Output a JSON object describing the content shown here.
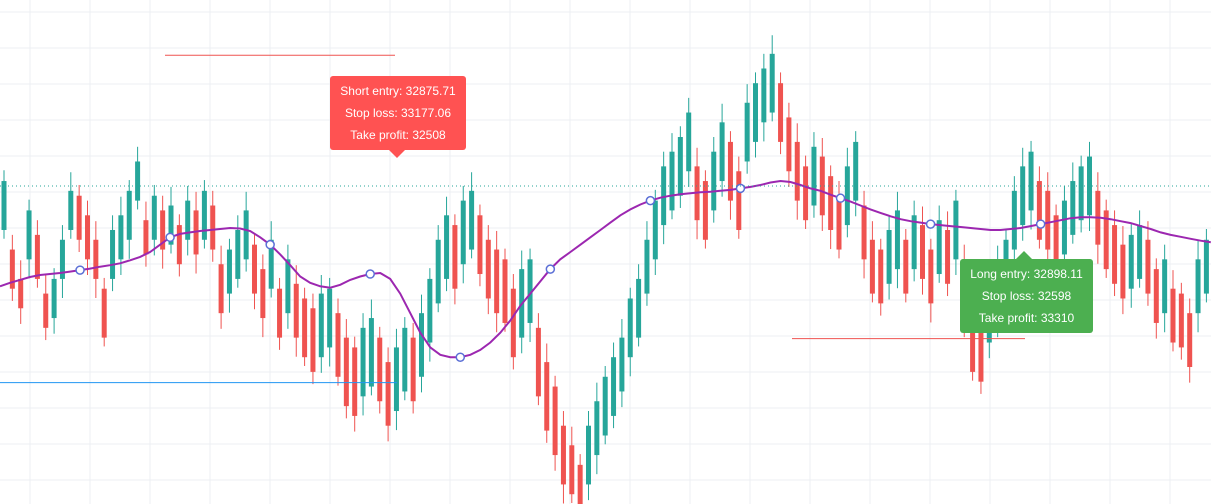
{
  "chart_data": {
    "type": "candlestick",
    "ylim": [
      32260,
      33290
    ],
    "grid": true,
    "colors": {
      "up": "#26a69a",
      "down": "#ef5350",
      "ma": "#9c27b0",
      "marker": "#5b6fd6",
      "last_price": "#26a69a",
      "support": "#2196f3",
      "resistance": "#26a0c8",
      "short_stop": "#ef5350",
      "long_stop": "#ef5350",
      "grid": "#eceff3",
      "short_box": "#ff5252",
      "long_box": "#4caf50"
    },
    "last_price": 32910,
    "candles_top": [
      32920,
      32780,
      32720,
      32860,
      32810,
      32690,
      32720,
      32800,
      32900,
      32890,
      32850,
      32800,
      32700,
      32820,
      32850,
      32900,
      32960,
      32840,
      32890,
      32860,
      32870,
      32830,
      32880,
      32860,
      32900,
      32870,
      32750,
      32780,
      32820,
      32860,
      32790,
      32740,
      32800,
      32700,
      32760,
      32710,
      32680,
      32660,
      32690,
      32700,
      32650,
      32600,
      32580,
      32620,
      32640,
      32600,
      32550,
      32580,
      32620,
      32600,
      32650,
      32720,
      32800,
      32850,
      32830,
      32880,
      32900,
      32850,
      32800,
      32780,
      32760,
      32700,
      32740,
      32760,
      32620,
      32550,
      32500,
      32420,
      32380,
      32340,
      32420,
      32470,
      32520,
      32560,
      32600,
      32680,
      32720,
      32800,
      32880,
      32950,
      32980,
      33010,
      33060,
      32950,
      32920,
      32980,
      33040,
      33000,
      32940,
      33080,
      33120,
      33150,
      33180,
      33120,
      33050,
      33000,
      32950,
      32990,
      32970,
      32930,
      32890,
      32950,
      33000,
      32870,
      32800,
      32780,
      32820,
      32860,
      32800,
      32850,
      32830,
      32780,
      32840,
      32820,
      32880,
      32760,
      32650,
      32620,
      32700,
      32750,
      32800,
      32900,
      32950,
      32980,
      32920,
      32900,
      32850,
      32880,
      32920,
      32950,
      32970,
      32900,
      32860,
      32830,
      32790,
      32810,
      32830,
      32800,
      32740,
      32760,
      32700,
      32690,
      32650,
      32760,
      32800,
      32920
    ],
    "candles_bottom": [
      32820,
      32700,
      32660,
      32760,
      32720,
      32620,
      32640,
      32720,
      32820,
      32800,
      32760,
      32720,
      32600,
      32720,
      32760,
      32800,
      32880,
      32770,
      32800,
      32780,
      32790,
      32750,
      32800,
      32770,
      32800,
      32780,
      32650,
      32690,
      32720,
      32760,
      32690,
      32640,
      32700,
      32600,
      32650,
      32600,
      32560,
      32530,
      32560,
      32580,
      32520,
      32460,
      32440,
      32480,
      32500,
      32470,
      32420,
      32450,
      32490,
      32470,
      32520,
      32590,
      32670,
      32720,
      32700,
      32750,
      32780,
      32730,
      32680,
      32650,
      32630,
      32560,
      32600,
      32630,
      32480,
      32410,
      32360,
      32300,
      32280,
      32240,
      32300,
      32360,
      32400,
      32440,
      32490,
      32560,
      32600,
      32690,
      32760,
      32830,
      32860,
      32890,
      32940,
      32840,
      32800,
      32860,
      32920,
      32880,
      32820,
      32960,
      33000,
      33040,
      33060,
      33000,
      32940,
      32880,
      32840,
      32870,
      32850,
      32820,
      32780,
      32830,
      32880,
      32760,
      32690,
      32670,
      32710,
      32740,
      32690,
      32740,
      32720,
      32670,
      32730,
      32710,
      32760,
      32640,
      32530,
      32510,
      32590,
      32640,
      32690,
      32780,
      32830,
      32860,
      32800,
      32780,
      32740,
      32770,
      32810,
      32840,
      32850,
      32790,
      32740,
      32710,
      32680,
      32700,
      32720,
      32690,
      32630,
      32650,
      32590,
      32580,
      32540,
      32650,
      32690,
      32820
    ],
    "ma_values": [
      32705,
      32712,
      32718,
      32724,
      32728,
      32730,
      32732,
      32735,
      32738,
      32741,
      32745,
      32748,
      32752,
      32758,
      32765,
      32775,
      32790,
      32805,
      32812,
      32815,
      32818,
      32820,
      32822,
      32824,
      32823,
      32818,
      32805,
      32790,
      32770,
      32748,
      32725,
      32712,
      32705,
      32702,
      32708,
      32718,
      32725,
      32730,
      32732,
      32720,
      32690,
      32650,
      32610,
      32580,
      32565,
      32560,
      32560,
      32565,
      32575,
      32590,
      32610,
      32635,
      32665,
      32690,
      32715,
      32740,
      32760,
      32775,
      32790,
      32805,
      32820,
      32835,
      32850,
      32862,
      32872,
      32880,
      32886,
      32890,
      32893,
      32895,
      32897,
      32898,
      32900,
      32902,
      32905,
      32908,
      32912,
      32917,
      32920,
      32918,
      32912,
      32905,
      32900,
      32892,
      32885,
      32878,
      32870,
      32862,
      32855,
      32848,
      32842,
      32838,
      32835,
      32832,
      32830,
      32828,
      32826,
      32824,
      32822,
      32820,
      32820,
      32822,
      32824,
      32828,
      32832,
      32836,
      32840,
      32844,
      32846,
      32846,
      32845,
      32842,
      32838,
      32834,
      32828,
      32822,
      32815,
      32810,
      32806,
      32802,
      32798,
      32795
    ],
    "ma_markers": [
      {
        "label": "ma-point",
        "index": 8
      },
      {
        "label": "ma-point",
        "index": 17
      },
      {
        "label": "ma-point",
        "index": 27
      },
      {
        "label": "ma-point",
        "index": 37
      },
      {
        "label": "ma-point",
        "index": 46
      },
      {
        "label": "ma-point",
        "index": 55
      },
      {
        "label": "ma-point",
        "index": 65
      },
      {
        "label": "ma-point",
        "index": 74
      },
      {
        "label": "ma-point",
        "index": 84
      },
      {
        "label": "ma-point",
        "index": 93
      },
      {
        "label": "ma-point",
        "index": 104
      }
    ],
    "annotations": {
      "short": {
        "entry_label": "Short entry: 32875.71",
        "stop_label": "Stop loss: 33177.06",
        "take_label": "Take profit: 32508",
        "stop_value": 33177.06,
        "take_value": 32508
      },
      "long": {
        "entry_label": "Long entry: 32898.11",
        "stop_label": "Stop loss: 32598",
        "take_label": "Take profit: 33310",
        "stop_value": 32598,
        "take_value": 33310
      }
    }
  }
}
